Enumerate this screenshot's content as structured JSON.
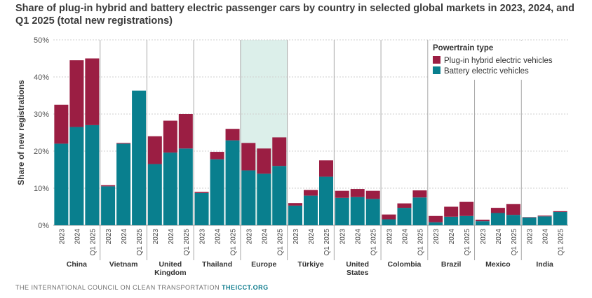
{
  "title": "Share of plug-in hybrid and battery electric passenger cars by country in selected global markets in 2023, 2024, and Q1 2025 (total new registrations)",
  "footer": {
    "org": "THE INTERNATIONAL COUNCIL ON CLEAN TRANSPORTATION",
    "site": "THEICCT.ORG"
  },
  "colors": {
    "phev": "#9b1e43",
    "bev": "#097f8e",
    "highlight": "#dcefea"
  },
  "chart_data": {
    "type": "bar",
    "stacked": true,
    "ylabel": "Share of new registrations",
    "ylim": [
      0,
      50
    ],
    "yticks": [
      "0%",
      "10%",
      "20%",
      "30%",
      "40%",
      "50%"
    ],
    "grid": true,
    "legend_title": "Powertrain type",
    "legend_position": "top-right",
    "highlighted_group": "Europe",
    "periods": [
      "2023",
      "2024",
      "Q1 2025"
    ],
    "groups": [
      {
        "name": [
          "China"
        ],
        "bev": [
          22,
          26.5,
          27
        ],
        "phev": [
          10.5,
          18,
          18
        ]
      },
      {
        "name": [
          "Vietnam"
        ],
        "bev": [
          10.5,
          22,
          36.3
        ],
        "phev": [
          0.3,
          0.2,
          0
        ]
      },
      {
        "name": [
          "United",
          "Kingdom"
        ],
        "bev": [
          16.5,
          19.6,
          20.7
        ],
        "phev": [
          7.5,
          8.6,
          9.3
        ]
      },
      {
        "name": [
          "Thailand"
        ],
        "bev": [
          8.7,
          17.8,
          22.9
        ],
        "phev": [
          0.3,
          2,
          3.1
        ]
      },
      {
        "name": [
          "Europe"
        ],
        "bev": [
          14.8,
          13.9,
          16
        ],
        "phev": [
          7.4,
          6.8,
          7.7
        ]
      },
      {
        "name": [
          "Türkiye"
        ],
        "bev": [
          5.3,
          8,
          13.1
        ],
        "phev": [
          0.7,
          1.5,
          4.4
        ]
      },
      {
        "name": [
          "United",
          "States"
        ],
        "bev": [
          7.4,
          7.6,
          7.1
        ],
        "phev": [
          1.9,
          2.2,
          2.2
        ]
      },
      {
        "name": [
          "Colombia"
        ],
        "bev": [
          1.6,
          4.7,
          7.5
        ],
        "phev": [
          1.3,
          1.2,
          1.9
        ]
      },
      {
        "name": [
          "Brazil"
        ],
        "bev": [
          0.8,
          2.3,
          2.5
        ],
        "phev": [
          1.7,
          2.7,
          3.8
        ]
      },
      {
        "name": [
          "Mexico"
        ],
        "bev": [
          1.1,
          3.3,
          2.8
        ],
        "phev": [
          0.4,
          1.4,
          2.9
        ]
      },
      {
        "name": [
          "India"
        ],
        "bev": [
          2.1,
          2.4,
          3.6
        ],
        "phev": [
          0.1,
          0.2,
          0.2
        ]
      }
    ],
    "series": [
      {
        "name": "Plug-in hybrid electric vehicles",
        "key": "phev"
      },
      {
        "name": "Battery electric vehicles",
        "key": "bev"
      }
    ]
  }
}
